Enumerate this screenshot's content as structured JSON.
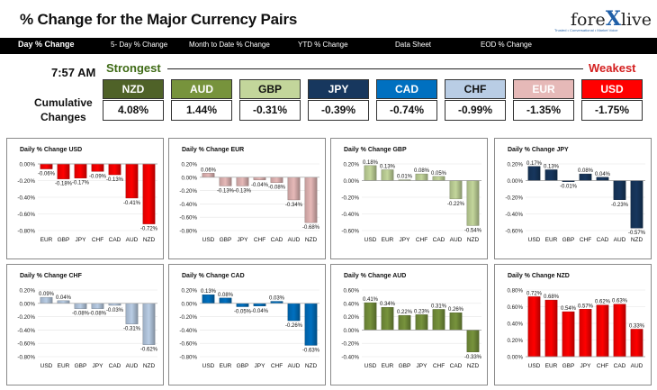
{
  "header": {
    "title": "% Change for the Major Currency Pairs"
  },
  "logo": {
    "text_a": "fore",
    "text_x": "X",
    "text_b": "live",
    "tagline": "Trusted • Conversational • Market Voice"
  },
  "nav": {
    "items": [
      "Day % Change",
      "5- Day % Change",
      "Month to Date % Change",
      "YTD % Change",
      "Data Sheet",
      "EOD % Change"
    ]
  },
  "summary": {
    "time": "7:57 AM",
    "strongest": "Strongest",
    "weakest": "Weakest",
    "cumulative_label_1": "Cumulative",
    "cumulative_label_2": "Changes",
    "currencies": [
      "NZD",
      "AUD",
      "GBP",
      "JPY",
      "CAD",
      "CHF",
      "EUR",
      "USD"
    ],
    "values": [
      "4.08%",
      "1.44%",
      "-0.31%",
      "-0.39%",
      "-0.74%",
      "-0.99%",
      "-1.35%",
      "-1.75%"
    ],
    "box_colors": [
      "#4f6228",
      "#77933c",
      "#c3d69b",
      "#17375e",
      "#0070c0",
      "#b9cde5",
      "#e6b9b8",
      "#ff0000"
    ],
    "box_text_colors": [
      "#ffffff",
      "#ffffff",
      "#111111",
      "#ffffff",
      "#ffffff",
      "#111111",
      "#ffffff",
      "#ffffff"
    ]
  },
  "chart_data": [
    {
      "type": "bar",
      "title": "Daily % Change USD",
      "categories": [
        "EUR",
        "GBP",
        "JPY",
        "CHF",
        "CAD",
        "AUD",
        "NZD"
      ],
      "values": [
        -0.06,
        -0.18,
        -0.17,
        -0.09,
        -0.13,
        -0.41,
        -0.72
      ],
      "labels": [
        "-0.06%",
        "-0.18%",
        "-0.17%",
        "-0.09%",
        "-0.13%",
        "-0.41%",
        "-0.72%"
      ],
      "ylim": [
        -0.8,
        0.0
      ],
      "ticks": [
        "0.00%",
        "-0.20%",
        "-0.40%",
        "-0.60%",
        "-0.80%"
      ],
      "tick_values": [
        0,
        -0.2,
        -0.4,
        -0.6,
        -0.8
      ],
      "color": "#ff0000"
    },
    {
      "type": "bar",
      "title": "Daily % Change EUR",
      "categories": [
        "USD",
        "GBP",
        "JPY",
        "CHF",
        "CAD",
        "AUD",
        "NZD"
      ],
      "values": [
        0.06,
        -0.13,
        -0.13,
        -0.04,
        -0.08,
        -0.34,
        -0.68
      ],
      "labels": [
        "0.06%",
        "-0.13%",
        "-0.13%",
        "-0.04%",
        "-0.08%",
        "-0.34%",
        "-0.68%"
      ],
      "ylim": [
        -0.8,
        0.2
      ],
      "ticks": [
        "0.20%",
        "0.00%",
        "-0.20%",
        "-0.40%",
        "-0.60%",
        "-0.80%"
      ],
      "tick_values": [
        0.2,
        0,
        -0.2,
        -0.4,
        -0.6,
        -0.8
      ],
      "color": "#e6b9b8"
    },
    {
      "type": "bar",
      "title": "Daily % Change GBP",
      "categories": [
        "USD",
        "EUR",
        "JPY",
        "CHF",
        "CAD",
        "AUD",
        "NZD"
      ],
      "values": [
        0.18,
        0.13,
        0.01,
        0.08,
        0.05,
        -0.22,
        -0.54
      ],
      "labels": [
        "0.18%",
        "0.13%",
        "0.01%",
        "0.08%",
        "0.05%",
        "-0.22%",
        "-0.54%"
      ],
      "ylim": [
        -0.6,
        0.2
      ],
      "ticks": [
        "0.20%",
        "0.00%",
        "-0.20%",
        "-0.40%",
        "-0.60%"
      ],
      "tick_values": [
        0.2,
        0,
        -0.2,
        -0.4,
        -0.6
      ],
      "color": "#c3d69b"
    },
    {
      "type": "bar",
      "title": "Daily % Change JPY",
      "categories": [
        "USD",
        "EUR",
        "GBP",
        "CHF",
        "CAD",
        "AUD",
        "NZD"
      ],
      "values": [
        0.17,
        0.13,
        -0.01,
        0.08,
        0.04,
        -0.23,
        -0.57
      ],
      "labels": [
        "0.17%",
        "0.13%",
        "-0.01%",
        "0.08%",
        "0.04%",
        "-0.23%",
        "-0.57%"
      ],
      "ylim": [
        -0.6,
        0.2
      ],
      "ticks": [
        "0.20%",
        "0.00%",
        "-0.20%",
        "-0.40%",
        "-0.60%"
      ],
      "tick_values": [
        0.2,
        0,
        -0.2,
        -0.4,
        -0.6
      ],
      "color": "#17375e"
    },
    {
      "type": "bar",
      "title": "Daily % Change CHF",
      "categories": [
        "USD",
        "EUR",
        "GBP",
        "JPY",
        "CAD",
        "AUD",
        "NZD"
      ],
      "values": [
        0.09,
        0.04,
        -0.08,
        -0.08,
        -0.03,
        -0.31,
        -0.62
      ],
      "labels": [
        "0.09%",
        "0.04%",
        "-0.08%",
        "-0.08%",
        "-0.03%",
        "-0.31%",
        "-0.62%"
      ],
      "ylim": [
        -0.8,
        0.2
      ],
      "ticks": [
        "0.20%",
        "0.00%",
        "-0.20%",
        "-0.40%",
        "-0.60%",
        "-0.80%"
      ],
      "tick_values": [
        0.2,
        0,
        -0.2,
        -0.4,
        -0.6,
        -0.8
      ],
      "color": "#b9cde5"
    },
    {
      "type": "bar",
      "title": "Daily % Change CAD",
      "categories": [
        "USD",
        "EUR",
        "GBP",
        "JPY",
        "CHF",
        "AUD",
        "NZD"
      ],
      "values": [
        0.13,
        0.08,
        -0.05,
        -0.04,
        0.03,
        -0.26,
        -0.63
      ],
      "labels": [
        "0.13%",
        "0.08%",
        "-0.05%",
        "-0.04%",
        "0.03%",
        "-0.26%",
        "-0.63%"
      ],
      "ylim": [
        -0.8,
        0.2
      ],
      "ticks": [
        "0.20%",
        "0.00%",
        "-0.20%",
        "-0.40%",
        "-0.60%",
        "-0.80%"
      ],
      "tick_values": [
        0.2,
        0,
        -0.2,
        -0.4,
        -0.6,
        -0.8
      ],
      "color": "#0070c0"
    },
    {
      "type": "bar",
      "title": "Daily % Change AUD",
      "categories": [
        "USD",
        "EUR",
        "GBP",
        "JPY",
        "CHF",
        "CAD",
        "NZD"
      ],
      "values": [
        0.41,
        0.34,
        0.22,
        0.23,
        0.31,
        0.26,
        -0.33
      ],
      "labels": [
        "0.41%",
        "0.34%",
        "0.22%",
        "0.23%",
        "0.31%",
        "0.26%",
        "-0.33%"
      ],
      "ylim": [
        -0.4,
        0.6
      ],
      "ticks": [
        "0.60%",
        "0.40%",
        "0.20%",
        "0.00%",
        "-0.20%",
        "-0.40%"
      ],
      "tick_values": [
        0.6,
        0.4,
        0.2,
        0,
        -0.2,
        -0.4
      ],
      "color": "#77933c"
    },
    {
      "type": "bar",
      "title": "Daily % Change NZD",
      "categories": [
        "USD",
        "EUR",
        "GBP",
        "JPY",
        "CHF",
        "CAD",
        "AUD"
      ],
      "values": [
        0.72,
        0.68,
        0.54,
        0.57,
        0.62,
        0.63,
        0.33
      ],
      "labels": [
        "0.72%",
        "0.68%",
        "0.54%",
        "0.57%",
        "0.62%",
        "0.63%",
        "0.33%"
      ],
      "ylim": [
        0.0,
        0.8
      ],
      "ticks": [
        "0.80%",
        "0.60%",
        "0.40%",
        "0.20%",
        "0.00%"
      ],
      "tick_values": [
        0.8,
        0.6,
        0.4,
        0.2,
        0
      ],
      "color": "#ff0000"
    }
  ]
}
